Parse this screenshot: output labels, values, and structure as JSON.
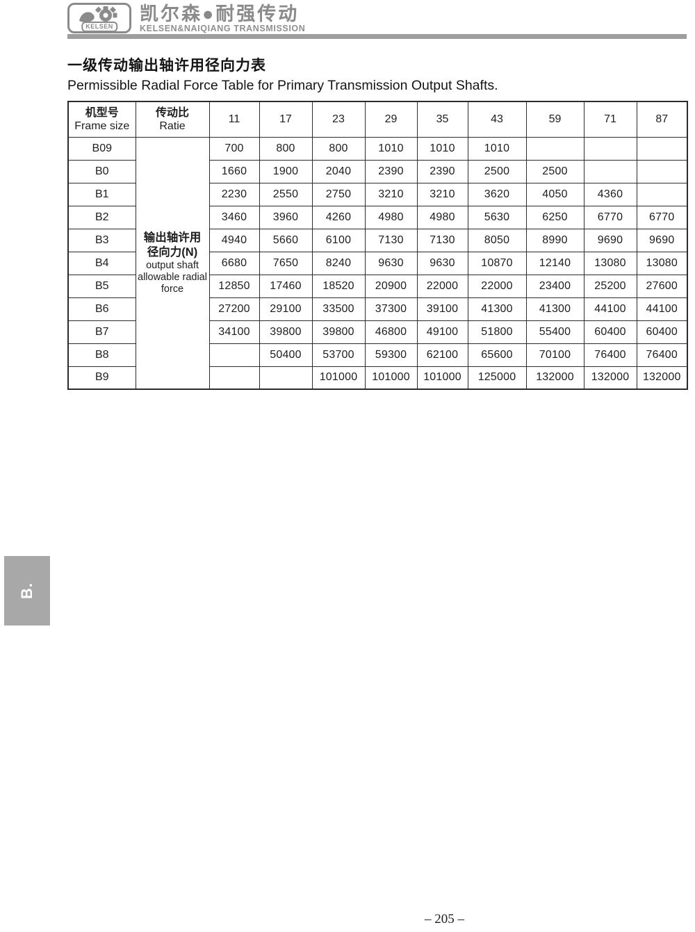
{
  "brand": {
    "logo_text": "KELSEN",
    "name_cn": "凯尔森●耐强传动",
    "name_en": "KELSEN&NAIQIANG TRANSMISSION"
  },
  "page": {
    "title_cn": "一级传动输出轴许用径向力表",
    "title_en": "Permissible Radial Force Table for  Primary Transmission Output Shafts.",
    "side_tab": "B.",
    "page_number": "– 205 –"
  },
  "table": {
    "header": {
      "frame_cn": "机型号",
      "frame_en": "Frame size",
      "ratio_cn": "传动比",
      "ratio_en": "Ratie",
      "ratios": [
        "11",
        "17",
        "23",
        "29",
        "35",
        "43",
        "59",
        "71",
        "87"
      ]
    },
    "merged_label": {
      "lines": [
        "输出轴许用",
        "径向力(N)",
        "output shaft",
        "allowable radial",
        "force"
      ]
    },
    "rows": [
      {
        "frame": "B09",
        "values": [
          "700",
          "800",
          "800",
          "1010",
          "1010",
          "1010",
          "",
          "",
          ""
        ]
      },
      {
        "frame": "B0",
        "values": [
          "1660",
          "1900",
          "2040",
          "2390",
          "2390",
          "2500",
          "2500",
          "",
          ""
        ]
      },
      {
        "frame": "B1",
        "values": [
          "2230",
          "2550",
          "2750",
          "3210",
          "3210",
          "3620",
          "4050",
          "4360",
          ""
        ]
      },
      {
        "frame": "B2",
        "values": [
          "3460",
          "3960",
          "4260",
          "4980",
          "4980",
          "5630",
          "6250",
          "6770",
          "6770"
        ]
      },
      {
        "frame": "B3",
        "values": [
          "4940",
          "5660",
          "6100",
          "7130",
          "7130",
          "8050",
          "8990",
          "9690",
          "9690"
        ]
      },
      {
        "frame": "B4",
        "values": [
          "6680",
          "7650",
          "8240",
          "9630",
          "9630",
          "10870",
          "12140",
          "13080",
          "13080"
        ]
      },
      {
        "frame": "B5",
        "values": [
          "12850",
          "17460",
          "18520",
          "20900",
          "22000",
          "22000",
          "23400",
          "25200",
          "27600"
        ]
      },
      {
        "frame": "B6",
        "values": [
          "27200",
          "29100",
          "33500",
          "37300",
          "39100",
          "41300",
          "41300",
          "44100",
          "44100"
        ]
      },
      {
        "frame": "B7",
        "values": [
          "34100",
          "39800",
          "39800",
          "46800",
          "49100",
          "51800",
          "55400",
          "60400",
          "60400"
        ]
      },
      {
        "frame": "B8",
        "values": [
          "",
          "50400",
          "53700",
          "59300",
          "62100",
          "65600",
          "70100",
          "76400",
          "76400"
        ]
      },
      {
        "frame": "B9",
        "values": [
          "",
          "",
          "101000",
          "101000",
          "101000",
          "125000",
          "132000",
          "132000",
          "132000"
        ]
      }
    ]
  },
  "colors": {
    "brand_gray": "#8b8b8b",
    "rule_gray": "#9e9e9e",
    "tab_gray": "#a8a8a8",
    "border_dark": "#2b2b2b",
    "text": "#1d1d1d"
  }
}
